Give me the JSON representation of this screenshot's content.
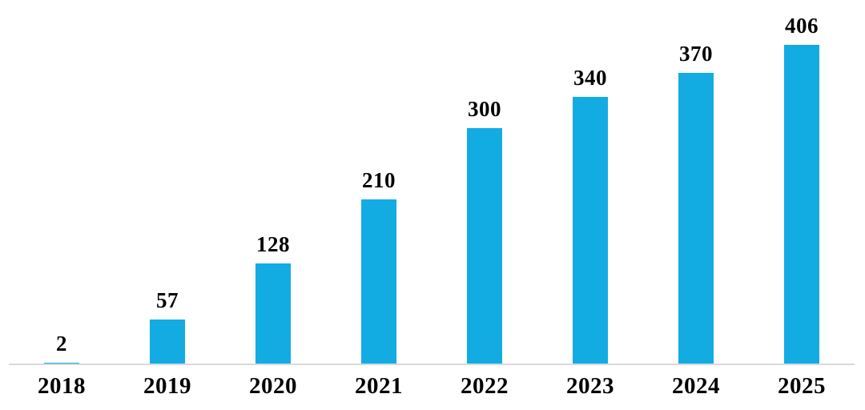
{
  "chart_data": {
    "type": "bar",
    "categories": [
      "2018",
      "2019",
      "2020",
      "2021",
      "2022",
      "2023",
      "2024",
      "2025"
    ],
    "values": [
      2,
      57,
      128,
      210,
      300,
      340,
      370,
      406
    ],
    "title": "",
    "xlabel": "",
    "ylabel": "",
    "ylim": [
      0,
      463
    ],
    "grid": false,
    "legend_position": "none",
    "data_labels_shown": true,
    "colors": {
      "bar_fill": "#12ACE3",
      "axis_line": "#D9D9D9",
      "label_text": "#000000",
      "background": "#FFFFFF"
    }
  }
}
